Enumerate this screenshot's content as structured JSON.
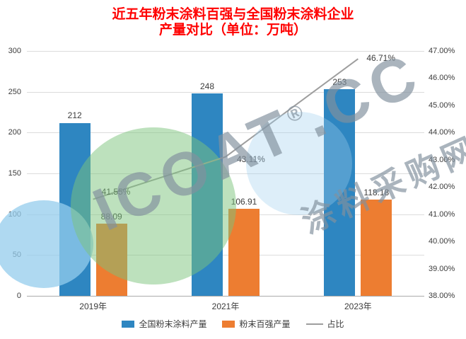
{
  "title": {
    "line1": "近五年粉末涂料百强与全国粉末涂料企业",
    "line2": "产量对比（单位：万吨）"
  },
  "chart_data": {
    "type": "bar+line",
    "categories": [
      "2019年",
      "2021年",
      "2023年"
    ],
    "series": [
      {
        "name": "全国粉末涂料产量",
        "type": "bar",
        "axis": "left",
        "color": "#2E86C1",
        "values": [
          212,
          248,
          253
        ],
        "labels": [
          "212",
          "248",
          "253"
        ]
      },
      {
        "name": "粉末百强产量",
        "type": "bar",
        "axis": "left",
        "color": "#ED7D31",
        "values": [
          88.09,
          106.91,
          118.18
        ],
        "labels": [
          "88.09",
          "106.91",
          "118.18"
        ]
      },
      {
        "name": "占比",
        "type": "line",
        "axis": "right",
        "color": "#9E9E9E",
        "values": [
          41.55,
          43.11,
          46.71
        ],
        "labels": [
          "41.55%",
          "43.11%",
          "46.71%"
        ]
      }
    ],
    "left_axis": {
      "min": 0,
      "max": 300,
      "step": 50,
      "ticks": [
        "0",
        "50",
        "100",
        "150",
        "200",
        "250",
        "300"
      ]
    },
    "right_axis": {
      "min": 38,
      "max": 47,
      "step": 1,
      "ticks": [
        "38.00%",
        "39.00%",
        "40.00%",
        "41.00%",
        "42.00%",
        "43.00%",
        "44.00%",
        "45.00%",
        "46.00%",
        "47.00%"
      ]
    },
    "grid": true,
    "legend_position": "bottom"
  },
  "legend": [
    {
      "label": "全国粉末涂料产量",
      "marker": "rect",
      "color": "#2E86C1"
    },
    {
      "label": "粉末百强产量",
      "marker": "rect",
      "color": "#ED7D31"
    },
    {
      "label": "占比",
      "marker": "line",
      "color": "#9E9E9E"
    }
  ],
  "watermark": {
    "brand": "ICOAT",
    "reg": "®",
    "brand_suffix": ".CC",
    "site_name": "涂料采购网"
  }
}
